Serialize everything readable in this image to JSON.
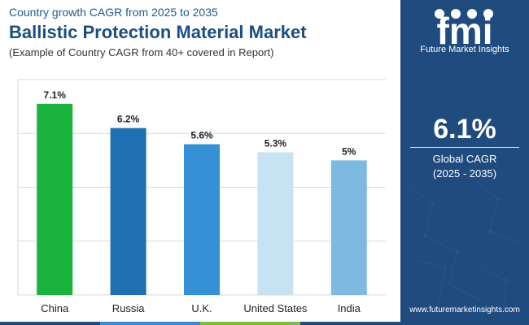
{
  "header": {
    "subtitle_top": "Country growth CAGR from 2025 to 2035",
    "title": "Ballistic Protection Material Market",
    "subtitle_bottom": "(Example of Country CAGR from 40+ covered in Report)"
  },
  "chart_data": {
    "type": "bar",
    "title": "Ballistic Protection Material Market",
    "categories": [
      "China",
      "Russia",
      "U.K.",
      "United States",
      "India"
    ],
    "values": [
      7.1,
      6.2,
      5.6,
      5.3,
      5.0
    ],
    "labels": [
      "7.1%",
      "6.2%",
      "5.6%",
      "5.3%",
      "5%"
    ],
    "colors": [
      "#1ab33d",
      "#1f6fb3",
      "#3590d6",
      "#c7e2f3",
      "#7eb9e1"
    ],
    "ylim": [
      0,
      8
    ],
    "grid": true,
    "xlabel": "",
    "ylabel": ""
  },
  "sidebar": {
    "logo_text": "fmi",
    "brand_name": "Future Market Insights",
    "global_value": "6.1%",
    "global_label_line1": "Global CAGR",
    "global_label_line2": "(2025 - 2035)",
    "website": "www.futuremarketinsights.com"
  },
  "colors": {
    "sidebar_bg": "#1f4b7f",
    "title": "#1a4f80",
    "strip": [
      "#1f4b7f",
      "#3a8ad0",
      "#7cc043",
      "#1f4b7f"
    ]
  }
}
